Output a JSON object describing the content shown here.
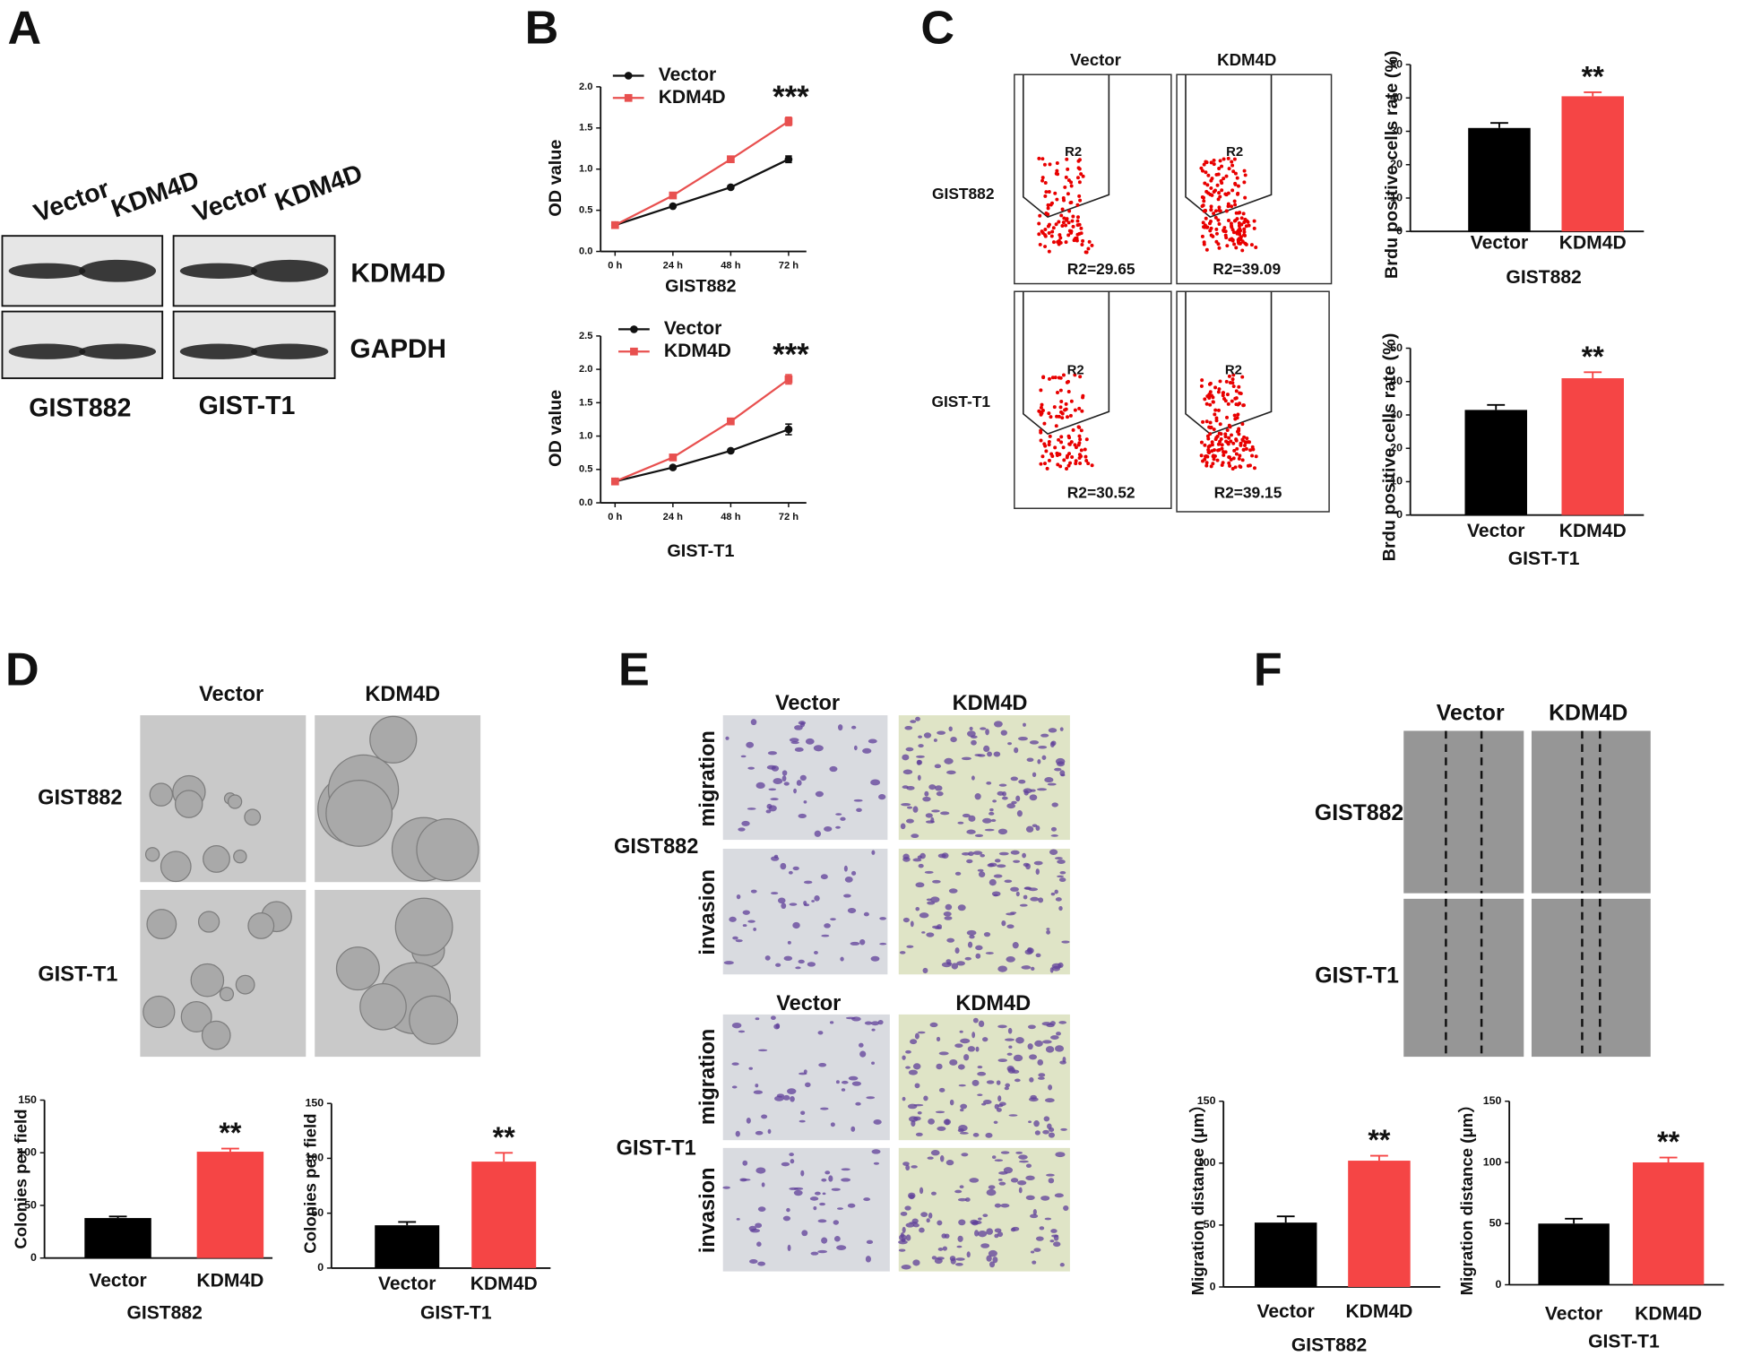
{
  "panel_labels": [
    "A",
    "B",
    "C",
    "D",
    "E",
    "F"
  ],
  "western_blot": {
    "lanes": [
      "Vector",
      "KDM4D",
      "Vector",
      "KDM4D"
    ],
    "bands": [
      "KDM4D",
      "GAPDH"
    ],
    "cell_lines": [
      "GIST882",
      "GIST-T1"
    ]
  },
  "flow_cytometry": {
    "columns": [
      "Vector",
      "KDM4D"
    ],
    "rows": [
      "GIST882",
      "GIST-T1"
    ],
    "gates": [
      "R2",
      "R2",
      "R2",
      "R2"
    ],
    "results": [
      "R2=29.65",
      "R2=39.09",
      "R2=30.52",
      "R2=39.15"
    ]
  },
  "colony_images": {
    "columns": [
      "Vector",
      "KDM4D"
    ],
    "rows": [
      "GIST882",
      "GIST-T1"
    ]
  },
  "transwell_images": {
    "groups": [
      {
        "cell_line": "GIST882",
        "columns": [
          "Vector",
          "KDM4D"
        ],
        "rows": [
          "migration",
          "invasion"
        ]
      },
      {
        "cell_line": "GIST-T1",
        "columns": [
          "Vector",
          "KDM4D"
        ],
        "rows": [
          "migration",
          "invasion"
        ]
      }
    ]
  },
  "wound_images": {
    "columns": [
      "Vector",
      "KDM4D"
    ],
    "rows": [
      "GIST882",
      "GIST-T1"
    ]
  },
  "chart_data": [
    {
      "type": "line",
      "categories": [
        "0 h",
        "24 h",
        "48 h",
        "72 h"
      ],
      "series": [
        {
          "name": "Vector",
          "color": "#111111",
          "values": [
            0.32,
            0.55,
            0.78,
            1.12
          ],
          "errors": [
            0.01,
            0.01,
            0.02,
            0.04
          ]
        },
        {
          "name": "KDM4D",
          "color": "#e8504f",
          "values": [
            0.32,
            0.68,
            1.12,
            1.58
          ],
          "errors": [
            0.01,
            0.01,
            0.02,
            0.05
          ]
        }
      ],
      "ylim": [
        0,
        2
      ],
      "yticks": [
        {
          "value": 0,
          "label": "0.0"
        },
        0.5,
        {
          "value": 1,
          "label": "1.0"
        },
        1.5,
        {
          "value": 2,
          "label": "2.0"
        }
      ],
      "ylabel": "OD value",
      "xlabel": "GIST882",
      "annotation": "***"
    },
    {
      "type": "line",
      "categories": [
        "0 h",
        "24 h",
        "48 h",
        "72 h"
      ],
      "series": [
        {
          "name": "Vector",
          "color": "#111111",
          "values": [
            0.32,
            0.53,
            0.78,
            1.1
          ],
          "errors": [
            0.01,
            0.02,
            0.02,
            0.08
          ]
        },
        {
          "name": "KDM4D",
          "color": "#e8504f",
          "values": [
            0.32,
            0.68,
            1.22,
            1.85
          ],
          "errors": [
            0.01,
            0.02,
            0.03,
            0.07
          ]
        }
      ],
      "ylim": [
        0,
        2.5
      ],
      "yticks": [
        {
          "value": 0,
          "label": "0.0"
        },
        0.5,
        {
          "value": 1,
          "label": "1.0"
        },
        1.5,
        {
          "value": 2,
          "label": "2.0"
        },
        2.5
      ],
      "ylabel": "OD value",
      "xlabel": "GIST-T1",
      "annotation": "***"
    },
    {
      "type": "bar",
      "categories": [
        "Vector",
        "KDM4D"
      ],
      "values": [
        31,
        40.5
      ],
      "errors": [
        1.5,
        1.2
      ],
      "colors": [
        "#000000",
        "#f54545"
      ],
      "ylim": [
        0,
        50
      ],
      "yticks": [
        0,
        10,
        20,
        30,
        40,
        50
      ],
      "ylabel": "Brdu positive cells rate (%)",
      "xlabel": "GIST882",
      "annotation": "**"
    },
    {
      "type": "bar",
      "categories": [
        "Vector",
        "KDM4D"
      ],
      "values": [
        31.5,
        41
      ],
      "errors": [
        1.5,
        1.8
      ],
      "colors": [
        "#000000",
        "#f54545"
      ],
      "ylim": [
        0,
        50
      ],
      "yticks": [
        0,
        10,
        20,
        30,
        40,
        50
      ],
      "ylabel": "Brdu positive cells rate (%)",
      "xlabel": "GIST-T1",
      "annotation": "**"
    },
    {
      "type": "bar",
      "categories": [
        "Vector",
        "KDM4D"
      ],
      "values": [
        38,
        101
      ],
      "errors": [
        1.5,
        3
      ],
      "colors": [
        "#000000",
        "#f54545"
      ],
      "ylim": [
        0,
        150
      ],
      "yticks": [
        0,
        50,
        100,
        150
      ],
      "ylabel": "Colonies per field",
      "xlabel": "GIST882",
      "annotation": "**"
    },
    {
      "type": "bar",
      "categories": [
        "Vector",
        "KDM4D"
      ],
      "values": [
        39,
        97
      ],
      "errors": [
        3,
        8
      ],
      "colors": [
        "#000000",
        "#f54545"
      ],
      "ylim": [
        0,
        150
      ],
      "yticks": [
        0,
        50,
        100,
        150
      ],
      "ylabel": "Colonies per field",
      "xlabel": "GIST-T1",
      "annotation": "**"
    },
    {
      "type": "bar",
      "categories": [
        "Vector",
        "KDM4D"
      ],
      "values": [
        52,
        102
      ],
      "errors": [
        5,
        4
      ],
      "colors": [
        "#000000",
        "#f54545"
      ],
      "ylim": [
        0,
        150
      ],
      "yticks": [
        0,
        50,
        100,
        150
      ],
      "ylabel": "Migration distance (μm）",
      "xlabel": "GIST882",
      "annotation": "**"
    },
    {
      "type": "bar",
      "categories": [
        "Vector",
        "KDM4D"
      ],
      "values": [
        50,
        100
      ],
      "errors": [
        4,
        4
      ],
      "colors": [
        "#000000",
        "#f54545"
      ],
      "ylim": [
        0,
        150
      ],
      "yticks": [
        0,
        50,
        100,
        150
      ],
      "ylabel": "Migration distance (μm）",
      "xlabel": "GIST-T1",
      "annotation": "**"
    }
  ]
}
